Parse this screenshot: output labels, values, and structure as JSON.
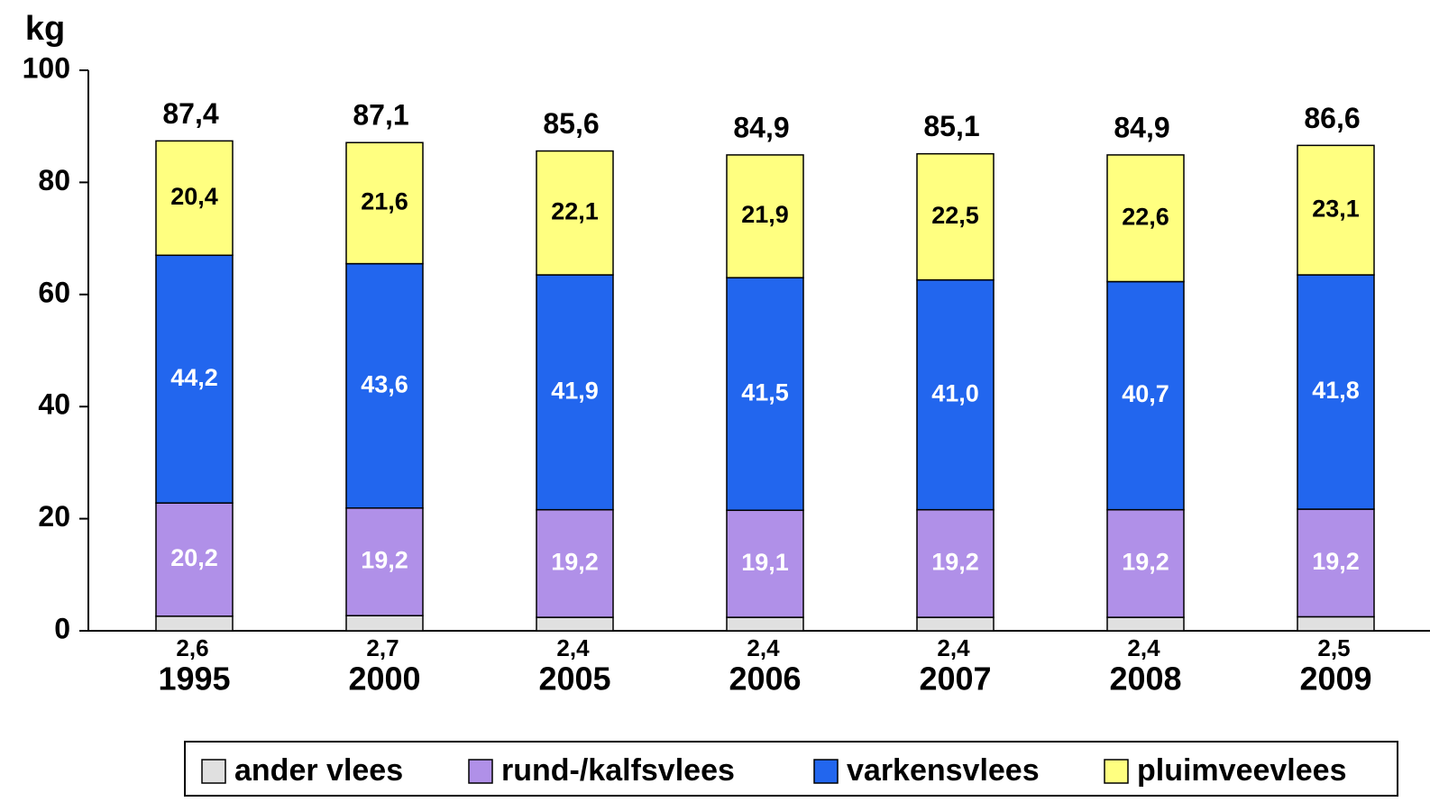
{
  "chart_data": {
    "type": "stacked_bar",
    "y_axis_label": "kg",
    "categories": [
      "1995",
      "2000",
      "2005",
      "2006",
      "2007",
      "2008",
      "2009"
    ],
    "series": [
      {
        "name": "ander vlees",
        "color": "#e0e0e0",
        "values": [
          2.6,
          2.7,
          2.4,
          2.4,
          2.4,
          2.4,
          2.5
        ],
        "value_labels": [
          "2,6",
          "2,7",
          "2,4",
          "2,4",
          "2,4",
          "2,4",
          "2,5"
        ]
      },
      {
        "name": "rund-/kalfsvlees",
        "color": "#b090e8",
        "values": [
          20.2,
          19.2,
          19.2,
          19.1,
          19.2,
          19.2,
          19.2
        ],
        "value_labels": [
          "20,2",
          "19,2",
          "19,2",
          "19,1",
          "19,2",
          "19,2",
          "19,2"
        ]
      },
      {
        "name": "varkensvlees",
        "color": "#2266ee",
        "values": [
          44.2,
          43.6,
          41.9,
          41.5,
          41.0,
          40.7,
          41.8
        ],
        "value_labels": [
          "44,2",
          "43,6",
          "41,9",
          "41,5",
          "41,0",
          "40,7",
          "41,8"
        ]
      },
      {
        "name": "pluimveevlees",
        "color": "#ffff80",
        "values": [
          20.4,
          21.6,
          22.1,
          21.9,
          22.5,
          22.6,
          23.1
        ],
        "value_labels": [
          "20,4",
          "21,6",
          "22,1",
          "21,9",
          "22,5",
          "22,6",
          "23,1"
        ]
      }
    ],
    "totals": [
      87.4,
      87.1,
      85.6,
      84.9,
      85.1,
      84.9,
      86.6
    ],
    "total_labels": [
      "87,4",
      "87,1",
      "85,6",
      "84,9",
      "85,1",
      "84,9",
      "86,6"
    ],
    "ylim": [
      0,
      100
    ],
    "yticks": [
      0,
      20,
      40,
      60,
      80,
      100
    ],
    "legend": "bottom"
  }
}
